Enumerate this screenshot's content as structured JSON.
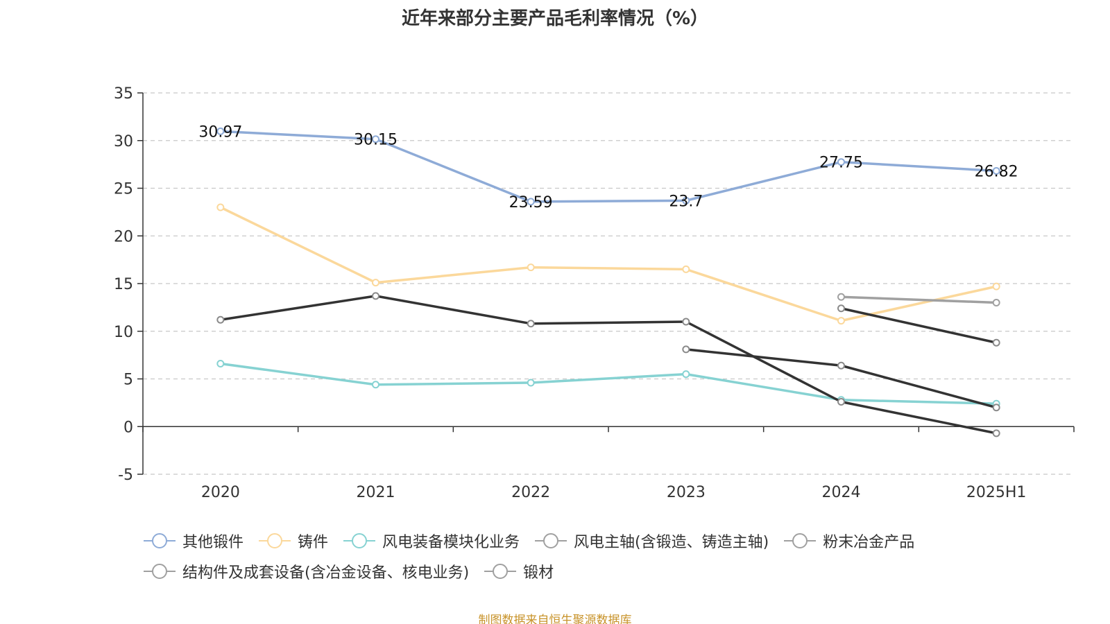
{
  "title": "近年来部分主要产品毛利率情况（%）",
  "source_note": "制图数据来自恒生聚源数据库",
  "chart_data": {
    "type": "line",
    "categories": [
      "2020",
      "2021",
      "2022",
      "2023",
      "2024",
      "2025H1"
    ],
    "ylim": [
      -5,
      35
    ],
    "yticks": [
      -5,
      0,
      5,
      10,
      15,
      20,
      25,
      30,
      35
    ],
    "grid": true,
    "legend_position": "bottom",
    "series": [
      {
        "name": "其他锻件",
        "color": "#8eabd7",
        "values": [
          30.97,
          30.15,
          23.59,
          23.7,
          27.75,
          26.82
        ],
        "labels": [
          "30.97",
          "30.15",
          "23.59",
          "23.7",
          "27.75",
          "26.82"
        ]
      },
      {
        "name": "铸件",
        "color": "#fbd89b",
        "values": [
          23.0,
          15.1,
          16.7,
          16.5,
          11.1,
          14.7
        ]
      },
      {
        "name": "风电装备模块化业务",
        "color": "#86d2d2",
        "values": [
          6.6,
          4.4,
          4.6,
          5.5,
          2.8,
          2.4
        ]
      },
      {
        "name": "风电主轴(含锻造、铸造主轴)",
        "color": "#333333",
        "values": [
          11.2,
          13.7,
          10.8,
          11.0,
          2.6,
          -0.7
        ]
      },
      {
        "name": "粉末冶金产品",
        "color": "#a0a0a0",
        "values": [
          null,
          null,
          null,
          null,
          13.6,
          13.0
        ]
      },
      {
        "name": "结构件及成套设备(含冶金设备、核电业务)",
        "color": "#333333",
        "values": [
          null,
          null,
          null,
          8.1,
          6.4,
          2.0
        ]
      },
      {
        "name": "锻材",
        "color": "#333333",
        "values": [
          null,
          null,
          null,
          null,
          12.4,
          8.8
        ]
      }
    ],
    "legend_rows": [
      [
        0,
        1,
        2,
        3,
        4
      ],
      [
        5,
        6
      ]
    ],
    "legend_icon_color": "#a0a0a0"
  }
}
